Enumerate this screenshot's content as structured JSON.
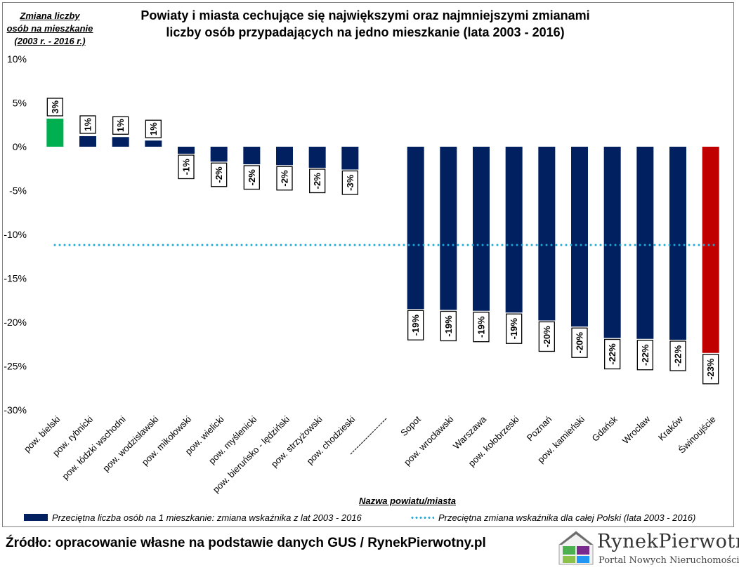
{
  "chart_data": {
    "type": "bar",
    "title": "Powiaty i miasta cechujące się największymi oraz najmniejszymi zmianami\nliczby osób przypadających na jedno mieszkanie (lata 2003 - 2016)",
    "ylabel": "Zmiana liczby\nosób na mieszkanie\n(2003 r. - 2016 r.)",
    "xlabel": "Nazwa powiatu/miasta",
    "ylim": [
      -30,
      10
    ],
    "yticks": [
      "10%",
      "5%",
      "0%",
      "-5%",
      "-10%",
      "-15%",
      "-20%",
      "-25%",
      "-30%"
    ],
    "categories": [
      "pow. bielski",
      "pow. rybnicki",
      "pow. łódzki wschodni",
      "pow. wodzisławski",
      "pow. mikołowski",
      "pow. wielicki",
      "pow. myślenicki",
      "pow. bieruńsko - lędziński",
      "pow. strzyżowski",
      "pow. chodzieski",
      "-----------------",
      "Sopot",
      "pow. wrocławski",
      "Warszawa",
      "pow. kołobrzeski",
      "Poznań",
      "pow. kamieński",
      "Gdańsk",
      "Wrocław",
      "Kraków",
      "Świnoujście"
    ],
    "values": [
      3.2,
      1.2,
      1.1,
      0.7,
      -0.8,
      -1.7,
      -2.0,
      -2.1,
      -2.4,
      -2.6,
      null,
      -18.5,
      -18.6,
      -18.7,
      -18.9,
      -19.8,
      -20.5,
      -21.8,
      -21.9,
      -22.0,
      -23.5
    ],
    "data_labels": [
      "3%",
      "1%",
      "1%",
      "1%",
      "-1%",
      "-2%",
      "-2%",
      "-2%",
      "-2%",
      "-3%",
      "",
      "-19%",
      "-19%",
      "-19%",
      "-19%",
      "-20%",
      "-20%",
      "-22%",
      "-22%",
      "-22%",
      "-23%"
    ],
    "bar_colors": [
      "#00b050",
      "#002060",
      "#002060",
      "#002060",
      "#002060",
      "#002060",
      "#002060",
      "#002060",
      "#002060",
      "#002060",
      "#002060",
      "#002060",
      "#002060",
      "#002060",
      "#002060",
      "#002060",
      "#002060",
      "#002060",
      "#002060",
      "#002060",
      "#c00000"
    ],
    "reference_line": {
      "value": -11.2,
      "color": "#1fa8d6"
    },
    "series": [
      {
        "name": "Przeciętna liczba osób na 1 mieszkanie: zmiana wskaźnika z lat 2003 - 2016"
      },
      {
        "name": "Przeciętna zmiana wskaźnika dla całej Polski (lata 2003 - 2016)"
      }
    ],
    "grid": false,
    "legend_position": "bottom"
  },
  "legend": {
    "bars": "Przeciętna liczba osób na 1 mieszkanie: zmiana wskaźnika z lat 2003 - 2016",
    "line": "Przeciętna zmiana wskaźnika dla całej Polski (lata 2003 - 2016)"
  },
  "footer": {
    "source": "Źródło: opracowanie własne na podstawie danych GUS / RynekPierwotny.pl",
    "logo_text": "RynekPierwotny",
    "logo_sub": "Portal Nowych Nieruchomości"
  },
  "colors": {
    "navy": "#002060",
    "green": "#00b050",
    "red": "#c00000",
    "dotted": "#1fa8d6"
  },
  "icons": {
    "logo": "house-logo-icon"
  }
}
